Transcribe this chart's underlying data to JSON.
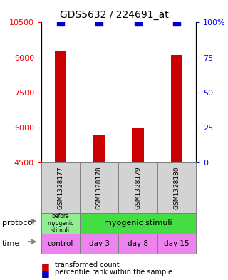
{
  "title": "GDS5632 / 224691_at",
  "samples": [
    "GSM1328177",
    "GSM1328178",
    "GSM1328179",
    "GSM1328180"
  ],
  "red_values": [
    9300,
    5700,
    6000,
    9100
  ],
  "blue_values": [
    100,
    100,
    100,
    100
  ],
  "y_min": 4500,
  "y_max": 10500,
  "y_ticks_red": [
    4500,
    6000,
    7500,
    9000,
    10500
  ],
  "y_ticks_blue": [
    0,
    25,
    50,
    75,
    100
  ],
  "y_labels_blue": [
    "0",
    "25",
    "50",
    "75",
    "100%"
  ],
  "protocol_labels": [
    "before\nmyogenic\nstimuli",
    "myogenic stimuli"
  ],
  "protocol_colors": [
    "#90ee90",
    "#55dd55"
  ],
  "time_labels": [
    "control",
    "day 3",
    "day 8",
    "day 15"
  ],
  "time_color": "#ee82ee",
  "sample_bg_color": "#d3d3d3",
  "grid_color": "#888888",
  "red_bar_color": "#cc0000",
  "blue_marker_color": "#0000cc",
  "title_color": "#000000"
}
